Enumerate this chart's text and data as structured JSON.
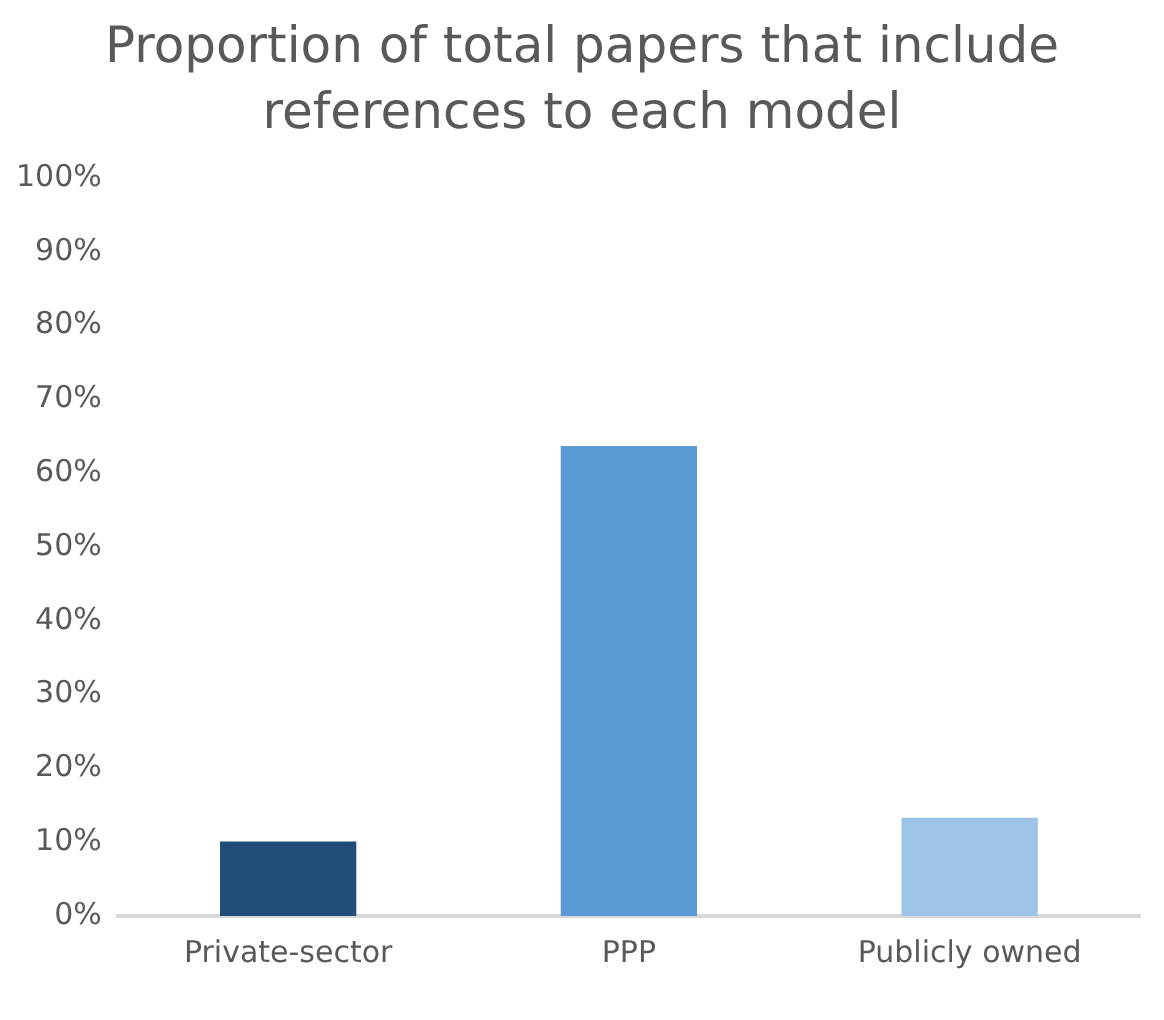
{
  "chart_data": {
    "type": "bar",
    "title": "Proportion of total papers that include references to each model",
    "categories": [
      "Private-sector",
      "PPP",
      "Publicly owned"
    ],
    "values": [
      10.1,
      63.7,
      13.3
    ],
    "colors": [
      "#1f4e79",
      "#5b9bd5",
      "#9dc3e6"
    ],
    "ylim": [
      0,
      100
    ],
    "yticks": [
      {
        "value": 0,
        "label": "0%"
      },
      {
        "value": 10,
        "label": "10%"
      },
      {
        "value": 20,
        "label": "20%"
      },
      {
        "value": 30,
        "label": "30%"
      },
      {
        "value": 40,
        "label": "40%"
      },
      {
        "value": 50,
        "label": "50%"
      },
      {
        "value": 60,
        "label": "60%"
      },
      {
        "value": 70,
        "label": "70%"
      },
      {
        "value": 80,
        "label": "80%"
      },
      {
        "value": 90,
        "label": "90%"
      },
      {
        "value": 100,
        "label": "100%"
      }
    ],
    "grid": false,
    "legend": false
  }
}
